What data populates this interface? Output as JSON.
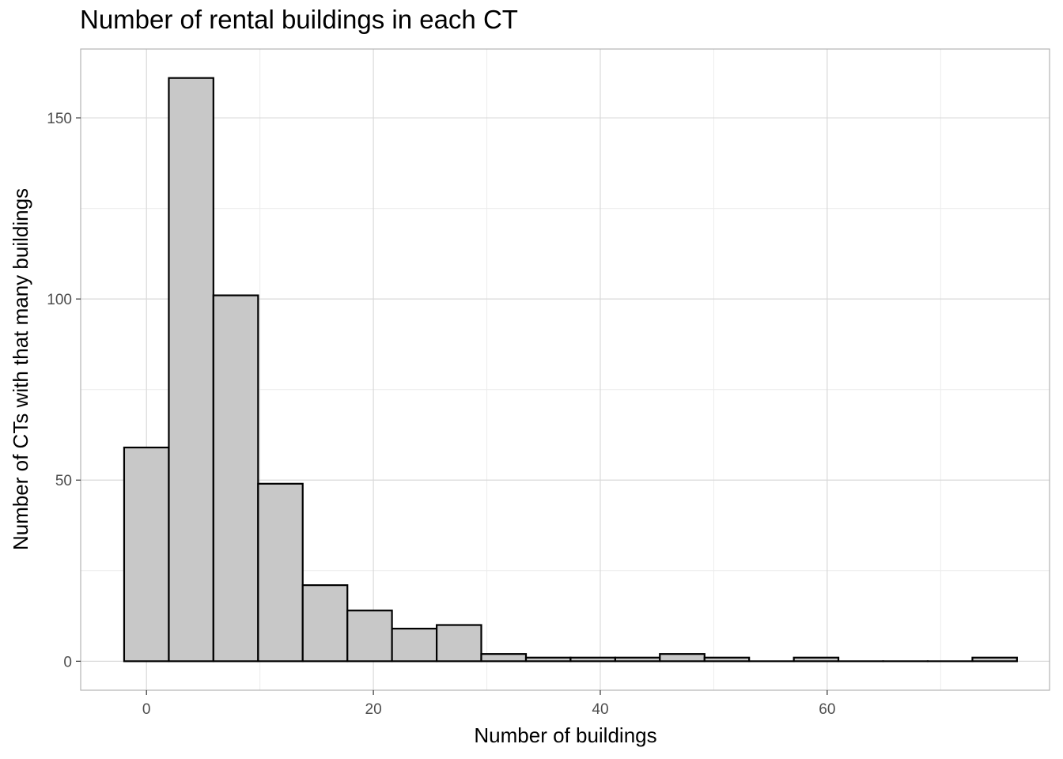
{
  "chart_data": {
    "type": "bar",
    "title": "Number of rental buildings in each CT",
    "xlabel": "Number of buildings",
    "ylabel": "Number of CTs with that many buildings",
    "bin_edges": [
      -1.97,
      1.97,
      5.9,
      9.84,
      13.77,
      17.71,
      21.64,
      25.58,
      29.51,
      33.45,
      37.38,
      41.32,
      45.25,
      49.19,
      53.12,
      57.06,
      60.99,
      64.93,
      68.86,
      72.8,
      76.73
    ],
    "values": [
      59,
      161,
      101,
      49,
      21,
      14,
      9,
      10,
      2,
      1,
      1,
      1,
      2,
      1,
      0,
      1,
      0,
      0,
      0,
      1
    ],
    "xlim": [
      -5.8,
      79.6
    ],
    "ylim": [
      -8,
      169
    ],
    "x_ticks": [
      0,
      20,
      40,
      60
    ],
    "x_minor_ticks": [
      10,
      30,
      50,
      70
    ],
    "y_ticks": [
      0,
      50,
      100,
      150
    ],
    "y_minor_ticks": [
      25,
      75,
      125
    ],
    "x_tick_labels": [
      "0",
      "20",
      "40",
      "60"
    ],
    "y_tick_labels": [
      "0",
      "50",
      "100",
      "150"
    ],
    "grid": true,
    "legend": "none",
    "colors": {
      "bar_fill": "#c8c8c8",
      "bar_stroke": "#000000",
      "grid_major": "#d9d9d9",
      "grid_minor": "#ececec",
      "panel_border": "#b3b3b3",
      "tick_text": "#4d4d4d"
    }
  }
}
